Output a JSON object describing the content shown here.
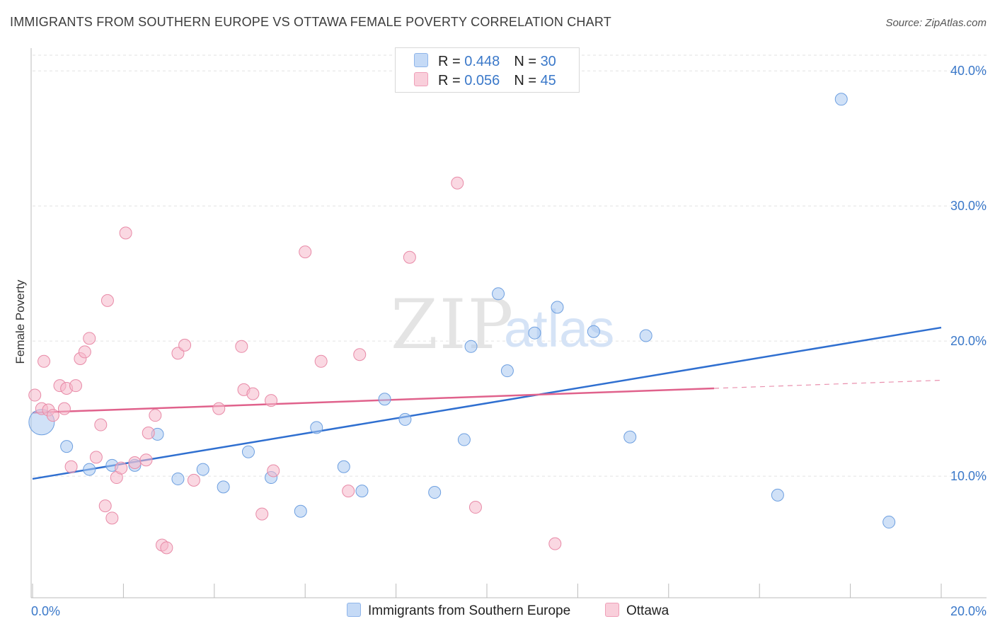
{
  "title": "IMMIGRANTS FROM SOUTHERN EUROPE VS OTTAWA FEMALE POVERTY CORRELATION CHART",
  "source": "Source: ZipAtlas.com",
  "watermark": {
    "zip": "ZIP",
    "atlas": "atlas"
  },
  "legend": {
    "rows": [
      {
        "r_label": "R = ",
        "r_value": "0.448",
        "n_label": "N = ",
        "n_value": "30",
        "color": "#a9c8f0"
      },
      {
        "r_label": "R = ",
        "r_value": "0.056",
        "n_label": "N = ",
        "n_value": "45",
        "color": "#f6b8ca"
      }
    ]
  },
  "bottom_legend": [
    {
      "label": "Immigrants from Southern Europe",
      "color": "#a9c8f0"
    },
    {
      "label": "Ottawa",
      "color": "#f6b8ca"
    }
  ],
  "chart_data": {
    "type": "scatter",
    "title": "IMMIGRANTS FROM SOUTHERN EUROPE VS OTTAWA FEMALE POVERTY CORRELATION CHART",
    "xlabel": "",
    "ylabel": "Female Poverty",
    "xlim": [
      0,
      20
    ],
    "ylim": [
      1,
      42
    ],
    "x_tick_labels": [
      "0.0%",
      "20.0%"
    ],
    "y_ticks": [
      10,
      20,
      30,
      40
    ],
    "y_tick_labels": [
      "10.0%",
      "20.0%",
      "30.0%",
      "40.0%"
    ],
    "grid": true,
    "series": [
      {
        "name": "Immigrants from Southern Europe",
        "color": "#a9c8f0",
        "stroke": "#6d9fe0",
        "trend_color": "#2f6fd0",
        "trend": {
          "x": [
            0,
            20
          ],
          "y": [
            9.8,
            21.0
          ]
        },
        "points": [
          {
            "x": 0.2,
            "y": 14.0,
            "big": true
          },
          {
            "x": 0.75,
            "y": 12.2
          },
          {
            "x": 1.25,
            "y": 10.5
          },
          {
            "x": 1.75,
            "y": 10.8
          },
          {
            "x": 2.25,
            "y": 10.8
          },
          {
            "x": 2.75,
            "y": 13.1
          },
          {
            "x": 3.2,
            "y": 9.8
          },
          {
            "x": 3.75,
            "y": 10.5
          },
          {
            "x": 4.2,
            "y": 9.2
          },
          {
            "x": 4.75,
            "y": 11.8
          },
          {
            "x": 5.25,
            "y": 9.9
          },
          {
            "x": 5.9,
            "y": 7.4
          },
          {
            "x": 6.25,
            "y": 13.6
          },
          {
            "x": 6.85,
            "y": 10.7
          },
          {
            "x": 7.25,
            "y": 8.9
          },
          {
            "x": 7.75,
            "y": 15.7
          },
          {
            "x": 8.2,
            "y": 14.2
          },
          {
            "x": 8.85,
            "y": 8.8
          },
          {
            "x": 9.5,
            "y": 12.7
          },
          {
            "x": 9.65,
            "y": 19.6
          },
          {
            "x": 10.25,
            "y": 23.5
          },
          {
            "x": 10.45,
            "y": 17.8
          },
          {
            "x": 11.05,
            "y": 20.6
          },
          {
            "x": 11.55,
            "y": 22.5
          },
          {
            "x": 12.35,
            "y": 20.7
          },
          {
            "x": 13.15,
            "y": 12.9
          },
          {
            "x": 13.5,
            "y": 20.4
          },
          {
            "x": 16.4,
            "y": 8.6
          },
          {
            "x": 17.8,
            "y": 37.9
          },
          {
            "x": 18.85,
            "y": 6.6
          }
        ]
      },
      {
        "name": "Ottawa",
        "color": "#f6b8ca",
        "stroke": "#e88aa7",
        "trend_color": "#e0628c",
        "trend": {
          "x": [
            0,
            15
          ],
          "y": [
            14.7,
            16.5
          ]
        },
        "trend_dashed": {
          "x": [
            15,
            20
          ],
          "y": [
            16.5,
            17.1
          ]
        },
        "points": [
          {
            "x": 0.05,
            "y": 16.0
          },
          {
            "x": 0.2,
            "y": 15.0
          },
          {
            "x": 0.25,
            "y": 18.5
          },
          {
            "x": 0.35,
            "y": 14.9
          },
          {
            "x": 0.45,
            "y": 14.5
          },
          {
            "x": 0.6,
            "y": 16.7
          },
          {
            "x": 0.7,
            "y": 15.0
          },
          {
            "x": 0.75,
            "y": 16.5
          },
          {
            "x": 0.85,
            "y": 10.7
          },
          {
            "x": 0.95,
            "y": 16.7
          },
          {
            "x": 1.05,
            "y": 18.7
          },
          {
            "x": 1.15,
            "y": 19.2
          },
          {
            "x": 1.25,
            "y": 20.2
          },
          {
            "x": 1.5,
            "y": 13.8
          },
          {
            "x": 1.4,
            "y": 11.4
          },
          {
            "x": 1.6,
            "y": 7.8
          },
          {
            "x": 1.65,
            "y": 23.0
          },
          {
            "x": 1.75,
            "y": 6.9
          },
          {
            "x": 1.85,
            "y": 9.9
          },
          {
            "x": 1.95,
            "y": 10.6
          },
          {
            "x": 2.05,
            "y": 28.0
          },
          {
            "x": 2.25,
            "y": 11.0
          },
          {
            "x": 2.5,
            "y": 11.2
          },
          {
            "x": 2.55,
            "y": 13.2
          },
          {
            "x": 2.7,
            "y": 14.5
          },
          {
            "x": 2.85,
            "y": 4.9
          },
          {
            "x": 2.95,
            "y": 4.7
          },
          {
            "x": 3.2,
            "y": 19.1
          },
          {
            "x": 3.35,
            "y": 19.7
          },
          {
            "x": 3.55,
            "y": 9.7
          },
          {
            "x": 4.1,
            "y": 15.0
          },
          {
            "x": 4.6,
            "y": 19.6
          },
          {
            "x": 4.65,
            "y": 16.4
          },
          {
            "x": 4.85,
            "y": 16.1
          },
          {
            "x": 5.05,
            "y": 7.2
          },
          {
            "x": 5.3,
            "y": 10.4
          },
          {
            "x": 5.25,
            "y": 15.6
          },
          {
            "x": 6.0,
            "y": 26.6
          },
          {
            "x": 6.35,
            "y": 18.5
          },
          {
            "x": 6.95,
            "y": 8.9
          },
          {
            "x": 7.2,
            "y": 19.0
          },
          {
            "x": 8.3,
            "y": 26.2
          },
          {
            "x": 9.35,
            "y": 31.7
          },
          {
            "x": 9.75,
            "y": 7.7
          },
          {
            "x": 11.5,
            "y": 5.0
          }
        ]
      }
    ]
  }
}
